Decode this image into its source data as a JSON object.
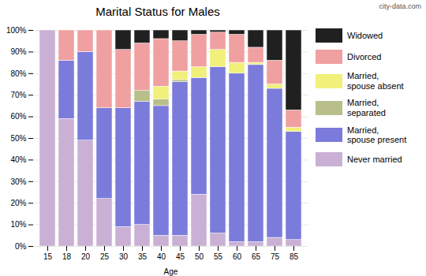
{
  "chart_data": {
    "type": "bar",
    "stacked": true,
    "title": "Marital Status for Males",
    "x_label": "Age",
    "annotations": [
      "city-data.com"
    ],
    "categories": [
      "15",
      "18",
      "20",
      "25",
      "30",
      "35",
      "40",
      "45",
      "50",
      "55",
      "60",
      "65",
      "75",
      "85"
    ],
    "series": [
      {
        "name": "Never married",
        "color": "#c9b0d4",
        "values": [
          100,
          59,
          49,
          22,
          9,
          10,
          5,
          5,
          24,
          6,
          2,
          2,
          4,
          3
        ]
      },
      {
        "name": "Married,\nspouse present",
        "color": "#7b7bdb",
        "values": [
          0,
          27,
          41,
          42,
          55,
          57,
          60,
          71,
          54,
          77,
          78,
          82,
          69,
          50
        ]
      },
      {
        "name": "Married,\nseparated",
        "color": "#b8bf8a",
        "values": [
          0,
          0,
          0,
          0,
          0,
          5,
          3,
          1,
          0,
          0,
          0,
          0,
          0,
          0
        ]
      },
      {
        "name": "Married,\nspouse absent",
        "color": "#f0f07a",
        "values": [
          0,
          0,
          0,
          0,
          0,
          0,
          6,
          4,
          5,
          8,
          5,
          1,
          2,
          2
        ]
      },
      {
        "name": "Divorced",
        "color": "#f0a0a0",
        "values": [
          0,
          14,
          10,
          36,
          27,
          22,
          22,
          14,
          15,
          8,
          13,
          7,
          11,
          8
        ]
      },
      {
        "name": "Widowed",
        "color": "#202020",
        "values": [
          0,
          0,
          0,
          0,
          9,
          6,
          4,
          5,
          2,
          1,
          2,
          8,
          14,
          37
        ]
      }
    ],
    "ylim": [
      0,
      100
    ],
    "yticks": [
      {
        "value": 0,
        "label": "0%"
      },
      {
        "value": 10,
        "label": "10%"
      },
      {
        "value": 20,
        "label": "20%"
      },
      {
        "value": 30,
        "label": "30%"
      },
      {
        "value": 40,
        "label": "40%"
      },
      {
        "value": 50,
        "label": "50%"
      },
      {
        "value": 60,
        "label": "60%"
      },
      {
        "value": 70,
        "label": "70%"
      },
      {
        "value": 80,
        "label": "80%"
      },
      {
        "value": 90,
        "label": "90%"
      },
      {
        "value": 100,
        "label": "100%"
      }
    ],
    "grid": true,
    "legend": "right"
  }
}
